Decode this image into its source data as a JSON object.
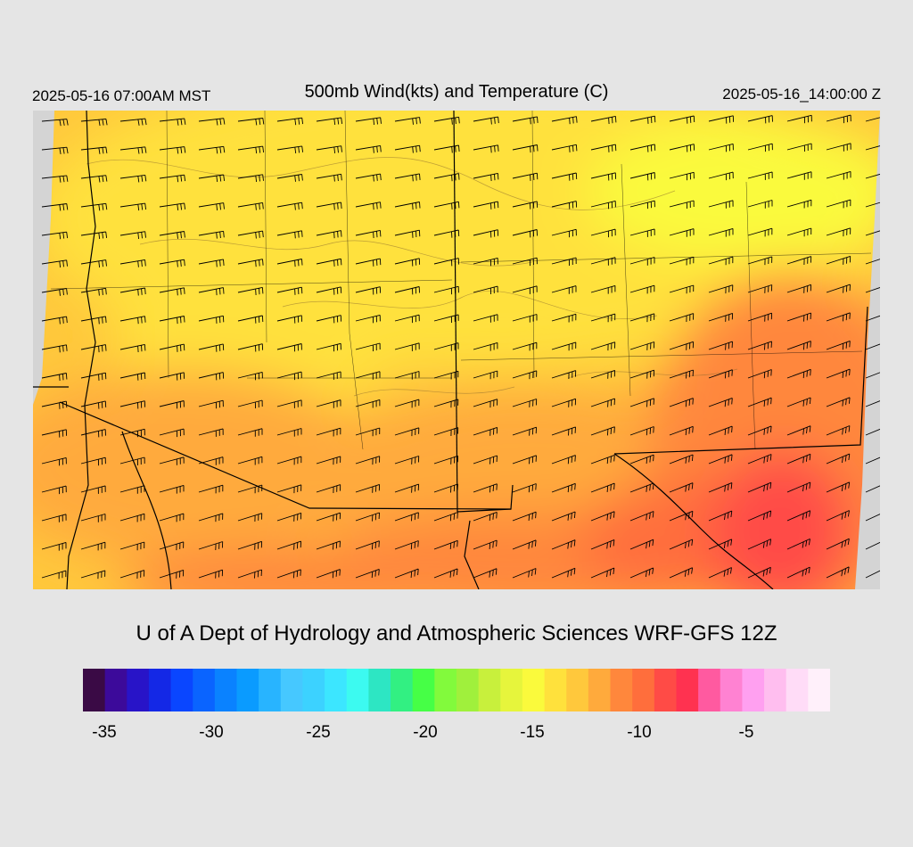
{
  "header": {
    "local_time": "2025-05-16 07:00AM MST",
    "title": "500mb Wind(kts) and Temperature (C)",
    "valid_time": "2025-05-16_14:00:00 Z"
  },
  "credit": "U of A Dept of Hydrology and Atmospheric Sciences WRF-GFS 12Z",
  "colorbar": {
    "colors": [
      "#3a0a45",
      "#3c0a9a",
      "#2814c8",
      "#1428e6",
      "#0a46ff",
      "#0a64ff",
      "#0a82ff",
      "#0a9bff",
      "#28b4ff",
      "#46c8ff",
      "#3cd2ff",
      "#3ce6ff",
      "#3cfaf0",
      "#2de6c3",
      "#32f082",
      "#46ff46",
      "#82fa3c",
      "#a0f03c",
      "#c8f03c",
      "#e6f53c",
      "#fafa3c",
      "#ffe13c",
      "#ffc83c",
      "#ffaa3c",
      "#ff873c",
      "#ff6e3c",
      "#ff4b46",
      "#ff3250",
      "#ff5aa0",
      "#ff82d2",
      "#ffa0f0",
      "#ffbeef",
      "#ffdcf7",
      "#fff0fa"
    ],
    "tick_labels": [
      "-35",
      "-30",
      "-25",
      "-20",
      "-15",
      "-10",
      "-5"
    ]
  }
}
